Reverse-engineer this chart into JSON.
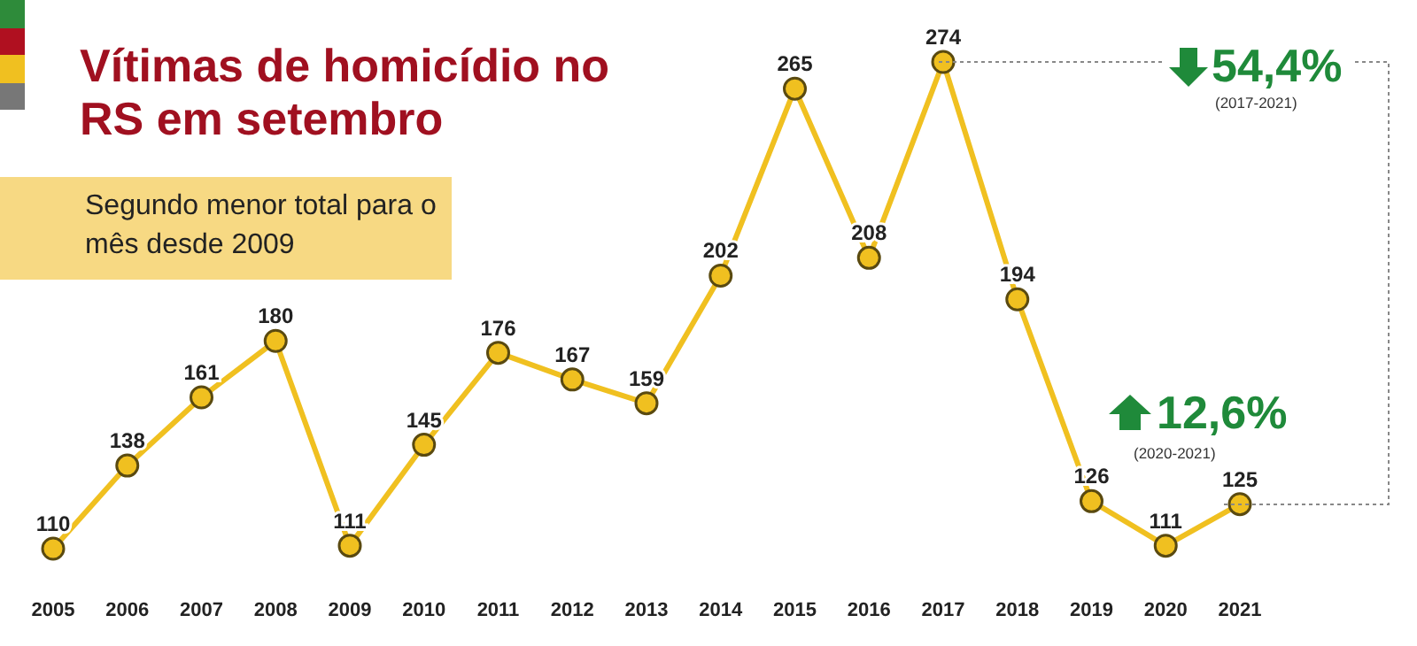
{
  "chart_data": {
    "type": "line",
    "title": "Vítimas de homicídio no RS em setembro",
    "subtitle": "Segundo menor total para o mês desde 2009",
    "categories": [
      "2005",
      "2006",
      "2007",
      "2008",
      "2009",
      "2010",
      "2011",
      "2012",
      "2013",
      "2014",
      "2015",
      "2016",
      "2017",
      "2018",
      "2019",
      "2020",
      "2021"
    ],
    "series": [
      {
        "color": "#f0c020",
        "values": [
          110,
          138,
          161,
          180,
          111,
          145,
          176,
          167,
          159,
          202,
          265,
          208,
          274,
          194,
          126,
          111,
          125
        ]
      }
    ],
    "data_labels": true,
    "marker": "circle",
    "annotations": [
      "54,4%",
      "(2017-2021)",
      "12,6%",
      "(2020-2021)"
    ]
  }
}
